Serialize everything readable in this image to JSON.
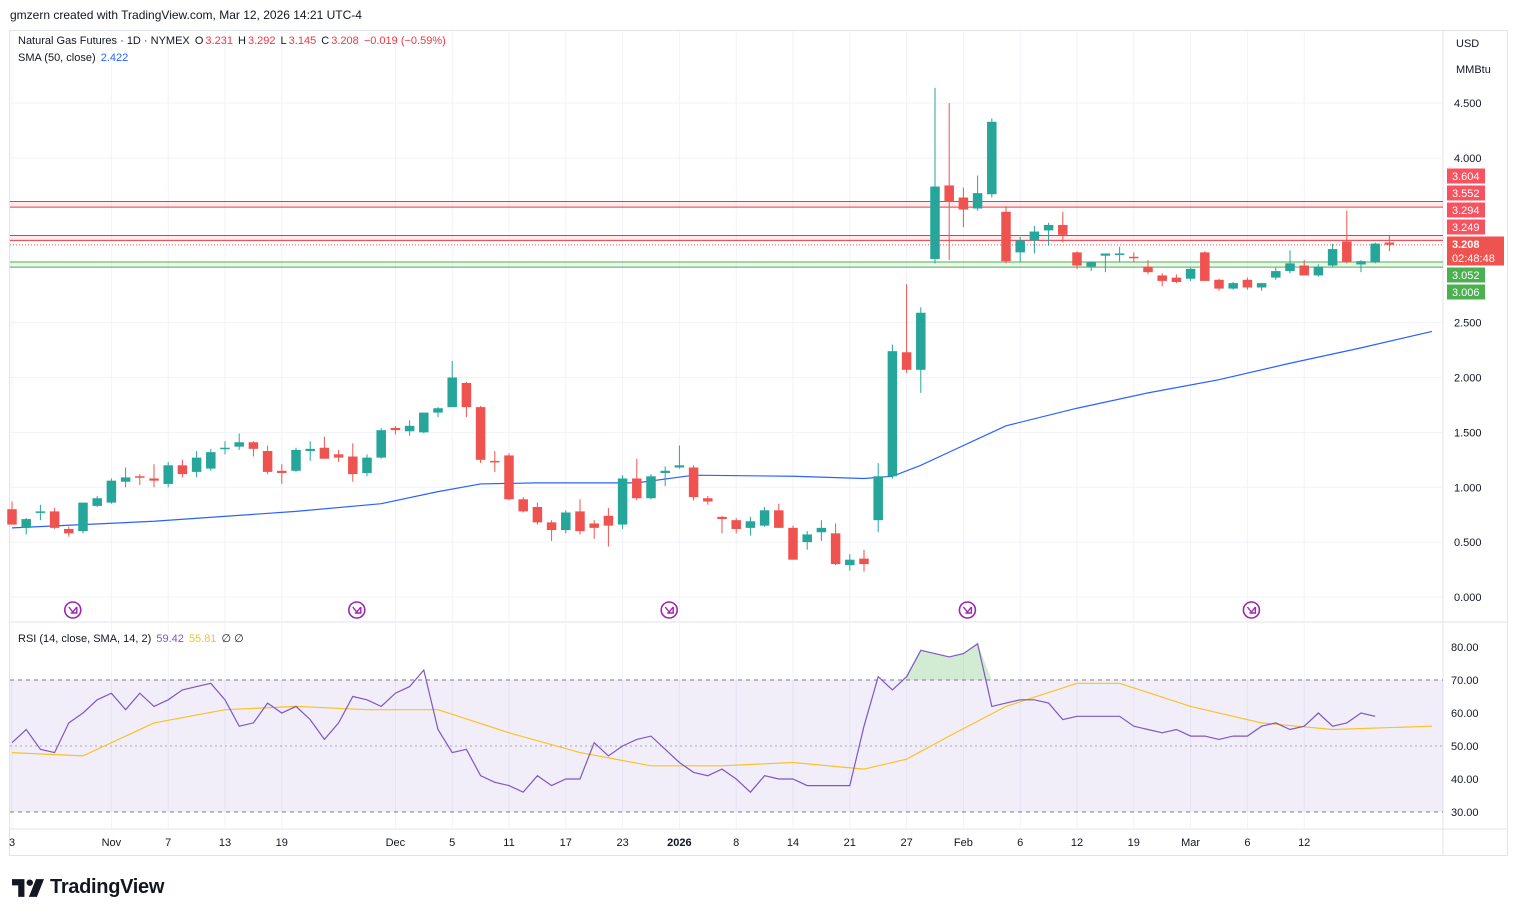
{
  "header": {
    "credit": "gmzern created with TradingView.com, Mar 12, 2026 14:21 UTC-4"
  },
  "legend": {
    "symbol": "Natural Gas Futures · 1D · NYMEX",
    "o_label": "O",
    "o_val": "3.231",
    "h_label": "H",
    "h_val": "3.292",
    "l_label": "L",
    "l_val": "3.145",
    "c_label": "C",
    "c_val": "3.208",
    "change": "−0.019 (−0.59%)",
    "sma_label": "SMA (50, close)",
    "sma_val": "2.422",
    "rsi_label": "RSI (14, close, SMA, 14, 2)",
    "rsi_val": "59.42",
    "rsi_ma_val": "55.81",
    "rsi_extra": "∅  ∅"
  },
  "currency": {
    "unit": "USD",
    "measure": "MMBtu"
  },
  "footer": {
    "logo_text": "TradingView"
  },
  "colors": {
    "up": "#26a69a",
    "down": "#ef5350",
    "sma": "#2962ff",
    "rsi": "#7e57c2",
    "rsi_ma": "#f7c325",
    "grid": "#f0f3fa",
    "resistance": "#f23645",
    "support": "#4caf50"
  },
  "chart_data": {
    "type": "candlestick",
    "x_tick_labels": [
      "3",
      "Nov",
      "7",
      "13",
      "19",
      "Dec",
      "5",
      "11",
      "17",
      "23",
      "2026",
      "8",
      "14",
      "21",
      "27",
      "Feb",
      "6",
      "12",
      "19",
      "Mar",
      "6",
      "12"
    ],
    "price_axis": {
      "ticks": [
        0.0,
        0.5,
        1.0,
        1.5,
        2.0,
        2.5,
        4.0,
        4.5
      ],
      "tick_labels": [
        "0.000",
        "0.500",
        "1.000",
        "1.500",
        "2.000",
        "2.500",
        "4.000",
        "4.500"
      ],
      "range": [
        -0.05,
        4.85
      ]
    },
    "price_labels": [
      {
        "text": "3.604",
        "value": 3.604,
        "kind": "resistance"
      },
      {
        "text": "3.552",
        "value": 3.552,
        "kind": "resistance"
      },
      {
        "text": "3.294",
        "value": 3.294,
        "kind": "resistance"
      },
      {
        "text": "3.249",
        "value": 3.249,
        "kind": "resistance"
      },
      {
        "text": "3.208",
        "value": 3.208,
        "kind": "last"
      },
      {
        "text": "02:48:48",
        "value": 3.208,
        "kind": "countdown"
      },
      {
        "text": "3.052",
        "value": 3.052,
        "kind": "support"
      },
      {
        "text": "3.006",
        "value": 3.006,
        "kind": "support"
      }
    ],
    "zones": [
      {
        "from": 3.552,
        "to": 3.604,
        "kind": "resistance"
      },
      {
        "from": 3.249,
        "to": 3.294,
        "kind": "resistance"
      },
      {
        "from": 3.006,
        "to": 3.052,
        "kind": "support"
      }
    ],
    "last_price": 3.208,
    "candles": [
      {
        "o": 0.8,
        "h": 0.87,
        "l": 0.66,
        "c": 0.66
      },
      {
        "o": 0.63,
        "h": 0.72,
        "l": 0.57,
        "c": 0.71
      },
      {
        "o": 0.78,
        "h": 0.84,
        "l": 0.7,
        "c": 0.78
      },
      {
        "o": 0.78,
        "h": 0.81,
        "l": 0.62,
        "c": 0.63
      },
      {
        "o": 0.62,
        "h": 0.64,
        "l": 0.55,
        "c": 0.58
      },
      {
        "o": 0.6,
        "h": 0.86,
        "l": 0.58,
        "c": 0.86
      },
      {
        "o": 0.83,
        "h": 0.92,
        "l": 0.82,
        "c": 0.9
      },
      {
        "o": 0.86,
        "h": 1.08,
        "l": 0.85,
        "c": 1.06
      },
      {
        "o": 1.05,
        "h": 1.18,
        "l": 1.0,
        "c": 1.09
      },
      {
        "o": 1.1,
        "h": 1.12,
        "l": 1.02,
        "c": 1.09
      },
      {
        "o": 1.08,
        "h": 1.21,
        "l": 1.0,
        "c": 1.06
      },
      {
        "o": 1.03,
        "h": 1.23,
        "l": 1.0,
        "c": 1.2
      },
      {
        "o": 1.2,
        "h": 1.25,
        "l": 1.09,
        "c": 1.12
      },
      {
        "o": 1.14,
        "h": 1.33,
        "l": 1.09,
        "c": 1.27
      },
      {
        "o": 1.17,
        "h": 1.35,
        "l": 1.15,
        "c": 1.32
      },
      {
        "o": 1.36,
        "h": 1.42,
        "l": 1.3,
        "c": 1.36
      },
      {
        "o": 1.37,
        "h": 1.49,
        "l": 1.34,
        "c": 1.41
      },
      {
        "o": 1.41,
        "h": 1.42,
        "l": 1.28,
        "c": 1.35
      },
      {
        "o": 1.33,
        "h": 1.38,
        "l": 1.12,
        "c": 1.14
      },
      {
        "o": 1.15,
        "h": 1.21,
        "l": 1.03,
        "c": 1.13
      },
      {
        "o": 1.15,
        "h": 1.36,
        "l": 1.14,
        "c": 1.34
      },
      {
        "o": 1.33,
        "h": 1.42,
        "l": 1.24,
        "c": 1.35
      },
      {
        "o": 1.36,
        "h": 1.46,
        "l": 1.26,
        "c": 1.26
      },
      {
        "o": 1.3,
        "h": 1.34,
        "l": 1.23,
        "c": 1.27
      },
      {
        "o": 1.28,
        "h": 1.4,
        "l": 1.05,
        "c": 1.12
      },
      {
        "o": 1.13,
        "h": 1.3,
        "l": 1.1,
        "c": 1.27
      },
      {
        "o": 1.27,
        "h": 1.54,
        "l": 1.26,
        "c": 1.52
      },
      {
        "o": 1.54,
        "h": 1.56,
        "l": 1.48,
        "c": 1.52
      },
      {
        "o": 1.51,
        "h": 1.61,
        "l": 1.47,
        "c": 1.56
      },
      {
        "o": 1.5,
        "h": 1.68,
        "l": 1.49,
        "c": 1.68
      },
      {
        "o": 1.68,
        "h": 1.73,
        "l": 1.64,
        "c": 1.72
      },
      {
        "o": 1.73,
        "h": 2.15,
        "l": 1.73,
        "c": 2.0
      },
      {
        "o": 1.95,
        "h": 1.96,
        "l": 1.64,
        "c": 1.73
      },
      {
        "o": 1.73,
        "h": 1.74,
        "l": 1.22,
        "c": 1.25
      },
      {
        "o": 1.24,
        "h": 1.33,
        "l": 1.14,
        "c": 1.23
      },
      {
        "o": 1.29,
        "h": 1.31,
        "l": 0.88,
        "c": 0.89
      },
      {
        "o": 0.89,
        "h": 0.91,
        "l": 0.77,
        "c": 0.78
      },
      {
        "o": 0.82,
        "h": 0.86,
        "l": 0.66,
        "c": 0.68
      },
      {
        "o": 0.68,
        "h": 0.7,
        "l": 0.51,
        "c": 0.61
      },
      {
        "o": 0.61,
        "h": 0.79,
        "l": 0.58,
        "c": 0.77
      },
      {
        "o": 0.78,
        "h": 0.89,
        "l": 0.57,
        "c": 0.6
      },
      {
        "o": 0.67,
        "h": 0.7,
        "l": 0.53,
        "c": 0.63
      },
      {
        "o": 0.74,
        "h": 0.81,
        "l": 0.46,
        "c": 0.65
      },
      {
        "o": 0.66,
        "h": 1.11,
        "l": 0.62,
        "c": 1.08
      },
      {
        "o": 1.08,
        "h": 1.26,
        "l": 0.88,
        "c": 0.9
      },
      {
        "o": 0.9,
        "h": 1.12,
        "l": 0.89,
        "c": 1.1
      },
      {
        "o": 1.13,
        "h": 1.19,
        "l": 1.01,
        "c": 1.15
      },
      {
        "o": 1.18,
        "h": 1.38,
        "l": 1.17,
        "c": 1.2
      },
      {
        "o": 1.18,
        "h": 1.2,
        "l": 0.88,
        "c": 0.91
      },
      {
        "o": 0.9,
        "h": 0.92,
        "l": 0.84,
        "c": 0.87
      },
      {
        "o": 0.73,
        "h": 0.74,
        "l": 0.58,
        "c": 0.71
      },
      {
        "o": 0.7,
        "h": 0.72,
        "l": 0.58,
        "c": 0.62
      },
      {
        "o": 0.63,
        "h": 0.73,
        "l": 0.56,
        "c": 0.69
      },
      {
        "o": 0.65,
        "h": 0.82,
        "l": 0.64,
        "c": 0.79
      },
      {
        "o": 0.79,
        "h": 0.85,
        "l": 0.63,
        "c": 0.63
      },
      {
        "o": 0.63,
        "h": 0.65,
        "l": 0.34,
        "c": 0.34
      },
      {
        "o": 0.5,
        "h": 0.6,
        "l": 0.43,
        "c": 0.57
      },
      {
        "o": 0.59,
        "h": 0.7,
        "l": 0.51,
        "c": 0.63
      },
      {
        "o": 0.58,
        "h": 0.67,
        "l": 0.29,
        "c": 0.3
      },
      {
        "o": 0.29,
        "h": 0.39,
        "l": 0.24,
        "c": 0.34
      },
      {
        "o": 0.35,
        "h": 0.43,
        "l": 0.23,
        "c": 0.3
      },
      {
        "o": 0.7,
        "h": 1.22,
        "l": 0.59,
        "c": 1.1
      },
      {
        "o": 1.1,
        "h": 2.3,
        "l": 1.08,
        "c": 2.24
      },
      {
        "o": 2.23,
        "h": 2.85,
        "l": 2.04,
        "c": 2.07
      },
      {
        "o": 2.07,
        "h": 2.64,
        "l": 1.86,
        "c": 2.59
      },
      {
        "o": 3.08,
        "h": 4.64,
        "l": 3.04,
        "c": 3.74
      },
      {
        "o": 3.75,
        "h": 4.5,
        "l": 3.07,
        "c": 3.6
      },
      {
        "o": 3.64,
        "h": 3.73,
        "l": 3.37,
        "c": 3.53
      },
      {
        "o": 3.54,
        "h": 3.84,
        "l": 3.52,
        "c": 3.68
      },
      {
        "o": 3.67,
        "h": 4.36,
        "l": 3.64,
        "c": 4.33
      },
      {
        "o": 3.51,
        "h": 3.56,
        "l": 3.04,
        "c": 3.06
      },
      {
        "o": 3.14,
        "h": 3.28,
        "l": 3.05,
        "c": 3.25
      },
      {
        "o": 3.25,
        "h": 3.38,
        "l": 3.13,
        "c": 3.33
      },
      {
        "o": 3.34,
        "h": 3.41,
        "l": 3.2,
        "c": 3.39
      },
      {
        "o": 3.39,
        "h": 3.51,
        "l": 3.23,
        "c": 3.3
      },
      {
        "o": 3.14,
        "h": 3.15,
        "l": 2.99,
        "c": 3.02
      },
      {
        "o": 3.01,
        "h": 3.06,
        "l": 2.97,
        "c": 3.05
      },
      {
        "o": 3.11,
        "h": 3.13,
        "l": 2.96,
        "c": 3.13
      },
      {
        "o": 3.12,
        "h": 3.19,
        "l": 3.05,
        "c": 3.13
      },
      {
        "o": 3.1,
        "h": 3.14,
        "l": 3.05,
        "c": 3.09
      },
      {
        "o": 3.01,
        "h": 3.07,
        "l": 2.94,
        "c": 2.96
      },
      {
        "o": 2.93,
        "h": 2.95,
        "l": 2.83,
        "c": 2.88
      },
      {
        "o": 2.91,
        "h": 2.94,
        "l": 2.86,
        "c": 2.87
      },
      {
        "o": 2.9,
        "h": 3.0,
        "l": 2.88,
        "c": 2.99
      },
      {
        "o": 3.14,
        "h": 3.15,
        "l": 2.92,
        "c": 2.88
      },
      {
        "o": 2.89,
        "h": 2.9,
        "l": 2.79,
        "c": 2.81
      },
      {
        "o": 2.81,
        "h": 2.87,
        "l": 2.8,
        "c": 2.86
      },
      {
        "o": 2.89,
        "h": 2.91,
        "l": 2.8,
        "c": 2.82
      },
      {
        "o": 2.82,
        "h": 2.86,
        "l": 2.79,
        "c": 2.86
      },
      {
        "o": 2.91,
        "h": 3.0,
        "l": 2.89,
        "c": 2.97
      },
      {
        "o": 2.97,
        "h": 3.16,
        "l": 2.95,
        "c": 3.04
      },
      {
        "o": 3.02,
        "h": 3.07,
        "l": 2.94,
        "c": 2.93
      },
      {
        "o": 2.93,
        "h": 3.03,
        "l": 2.92,
        "c": 3.01
      },
      {
        "o": 3.02,
        "h": 3.22,
        "l": 3.01,
        "c": 3.17
      },
      {
        "o": 3.24,
        "h": 3.52,
        "l": 3.04,
        "c": 3.05
      },
      {
        "o": 3.03,
        "h": 3.07,
        "l": 2.96,
        "c": 3.06
      },
      {
        "o": 3.05,
        "h": 3.23,
        "l": 3.04,
        "c": 3.22
      },
      {
        "o": 3.23,
        "h": 3.29,
        "l": 3.15,
        "c": 3.21
      }
    ],
    "sma50": [
      [
        0,
        0.63
      ],
      [
        10,
        0.69
      ],
      [
        20,
        0.78
      ],
      [
        26,
        0.85
      ],
      [
        30,
        0.96
      ],
      [
        33,
        1.03
      ],
      [
        37,
        1.04
      ],
      [
        44,
        1.04
      ],
      [
        48,
        1.11
      ],
      [
        55,
        1.1
      ],
      [
        60,
        1.08
      ],
      [
        62,
        1.1
      ],
      [
        64,
        1.2
      ],
      [
        66,
        1.32
      ],
      [
        68,
        1.44
      ],
      [
        70,
        1.56
      ],
      [
        75,
        1.72
      ],
      [
        80,
        1.86
      ],
      [
        85,
        1.98
      ],
      [
        90,
        2.13
      ],
      [
        95,
        2.27
      ],
      [
        100,
        2.42
      ]
    ],
    "rsi_axis": {
      "ticks": [
        30,
        40,
        50,
        60,
        70,
        80
      ],
      "tick_labels": [
        "30.00",
        "40.00",
        "50.00",
        "60.00",
        "70.00",
        "80.00"
      ],
      "range": [
        25,
        84
      ],
      "band": [
        30,
        70
      ]
    },
    "rsi": [
      51,
      55,
      49,
      48,
      57,
      60,
      64,
      66,
      61,
      66,
      62,
      64,
      67,
      68,
      69,
      64,
      56,
      57,
      63,
      60,
      62,
      58,
      52,
      57,
      65,
      64,
      62,
      66,
      68,
      73,
      55,
      48,
      49,
      41,
      39,
      38,
      36,
      41,
      38,
      40,
      40,
      51,
      47,
      50,
      52,
      53,
      49,
      45,
      42,
      41,
      43,
      40,
      36,
      41,
      40,
      40,
      38,
      38,
      38,
      38,
      56,
      71,
      67,
      71,
      79,
      78,
      77,
      78,
      81,
      62,
      63,
      64,
      64,
      63,
      58,
      59,
      59,
      59,
      59,
      56,
      55,
      54,
      55,
      53,
      53,
      52,
      53,
      53,
      56,
      57,
      55,
      56,
      60,
      56,
      57,
      60,
      59
    ],
    "rsi_ma": [
      [
        0,
        48
      ],
      [
        5,
        47
      ],
      [
        10,
        57
      ],
      [
        15,
        61
      ],
      [
        20,
        62
      ],
      [
        25,
        61
      ],
      [
        30,
        61
      ],
      [
        35,
        54
      ],
      [
        40,
        48
      ],
      [
        45,
        44
      ],
      [
        50,
        44
      ],
      [
        55,
        45
      ],
      [
        60,
        43
      ],
      [
        63,
        46
      ],
      [
        66,
        53
      ],
      [
        70,
        62
      ],
      [
        75,
        69
      ],
      [
        78,
        69
      ],
      [
        83,
        62
      ],
      [
        88,
        57
      ],
      [
        93,
        55
      ],
      [
        100,
        56
      ]
    ],
    "event_markers_at_index": [
      4,
      24,
      46,
      67,
      87
    ]
  }
}
